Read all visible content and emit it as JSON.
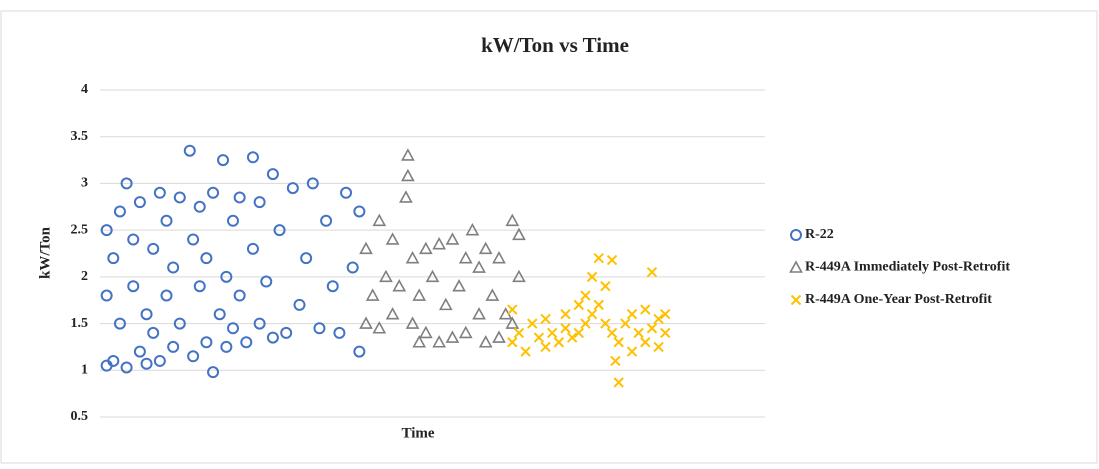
{
  "chart_data": {
    "type": "scatter",
    "title": "kW/Ton  vs Time",
    "x_label": "Time",
    "y_label": "kW/Ton",
    "xlim": [
      0,
      100
    ],
    "ylim": [
      0.5,
      4
    ],
    "yticks": [
      0.5,
      1,
      1.5,
      2,
      2.5,
      3,
      3.5,
      4
    ],
    "grid": true,
    "legend": "right",
    "series": [
      {
        "name": "R-22",
        "marker": "circle",
        "color": "#4472c4",
        "x": [
          1,
          1,
          1,
          2,
          2,
          3,
          3,
          4,
          4,
          5,
          5,
          6,
          6,
          7,
          7,
          8,
          8,
          9,
          9,
          10,
          10,
          11,
          11,
          12,
          12,
          13.5,
          14,
          14,
          15,
          15,
          16,
          16,
          17,
          17,
          18,
          18.5,
          19,
          19,
          20,
          20,
          21,
          21,
          22,
          23,
          23,
          24,
          24,
          25,
          26,
          26,
          27,
          28,
          29,
          30,
          31,
          32,
          33,
          34,
          35,
          36,
          37,
          38,
          39,
          39
        ],
        "values": [
          1.05,
          1.8,
          2.5,
          1.1,
          2.2,
          1.5,
          2.7,
          1.03,
          3.0,
          1.9,
          2.4,
          1.2,
          2.8,
          1.6,
          1.07,
          2.3,
          1.4,
          2.9,
          1.1,
          1.8,
          2.6,
          1.25,
          2.1,
          2.85,
          1.5,
          3.35,
          1.15,
          2.4,
          1.9,
          2.75,
          1.3,
          2.2,
          0.98,
          2.9,
          1.6,
          3.25,
          2.0,
          1.25,
          2.6,
          1.45,
          2.85,
          1.8,
          1.3,
          3.28,
          2.3,
          1.5,
          2.8,
          1.95,
          1.35,
          3.1,
          2.5,
          1.4,
          2.95,
          1.7,
          2.2,
          3.0,
          1.45,
          2.6,
          1.9,
          1.4,
          2.9,
          2.1,
          1.2,
          2.7
        ]
      },
      {
        "name": "R-449A Immediately Post-Retrofit",
        "marker": "triangle",
        "color": "#7f7f7f",
        "x": [
          40,
          40,
          41,
          42,
          42,
          43,
          44,
          44,
          45,
          46,
          46.3,
          46.3,
          47,
          47,
          48,
          48,
          49,
          49,
          50,
          51,
          51,
          52,
          53,
          53,
          54,
          55,
          55,
          56,
          57,
          57,
          58,
          58,
          59,
          60,
          60,
          61,
          62,
          62,
          63,
          63
        ],
        "values": [
          1.5,
          2.3,
          1.8,
          2.6,
          1.45,
          2.0,
          1.6,
          2.4,
          1.9,
          2.85,
          3.3,
          3.08,
          1.5,
          2.2,
          1.3,
          1.8,
          2.3,
          1.4,
          2.0,
          1.3,
          2.35,
          1.7,
          2.4,
          1.35,
          1.9,
          2.2,
          1.4,
          2.5,
          1.6,
          2.1,
          1.3,
          2.3,
          1.8,
          2.2,
          1.35,
          1.6,
          2.6,
          1.5,
          2.0,
          2.45
        ]
      },
      {
        "name": "R-449A One-Year Post-Retrofit",
        "marker": "x",
        "color": "#ffc000",
        "x": [
          62,
          62,
          63,
          64,
          65,
          66,
          67,
          67,
          68,
          69,
          70,
          70,
          71,
          72,
          72,
          73,
          73,
          74,
          74,
          75,
          75,
          76,
          76,
          77,
          77,
          77.5,
          78,
          78,
          79,
          80,
          80,
          81,
          82,
          82,
          83,
          83,
          84,
          84,
          85,
          85
        ],
        "values": [
          1.65,
          1.3,
          1.4,
          1.2,
          1.5,
          1.35,
          1.25,
          1.55,
          1.4,
          1.3,
          1.45,
          1.6,
          1.35,
          1.7,
          1.4,
          1.8,
          1.5,
          2.0,
          1.6,
          2.2,
          1.7,
          1.9,
          1.5,
          2.18,
          1.4,
          1.1,
          0.87,
          1.3,
          1.5,
          1.2,
          1.6,
          1.4,
          1.3,
          1.65,
          2.05,
          1.45,
          1.25,
          1.55,
          1.4,
          1.6
        ]
      }
    ]
  }
}
